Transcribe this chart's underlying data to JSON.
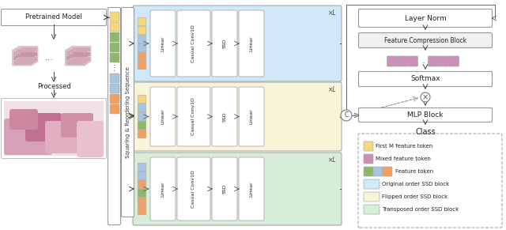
{
  "fig_width": 6.4,
  "fig_height": 2.91,
  "dpi": 100,
  "bg_color": "#ffffff",
  "colors": {
    "yellow": "#F5D87A",
    "green": "#8DB86A",
    "blue_sq": "#A8C4E0",
    "orange": "#F0A060",
    "pink": "#CC90B8",
    "block_blue": "#D0E8F8",
    "block_yellow": "#F8F4D8",
    "block_green": "#D8EDD8",
    "white": "#FFFFFF",
    "gray_box": "#F0F0F0",
    "border": "#999999",
    "text": "#222222",
    "arrow": "#555555"
  },
  "seq_label": "Squaring & Reordering Sequence",
  "ssd_labels": [
    "Linear",
    "Casual Conv1D",
    "SSD",
    "Linear"
  ],
  "right_labels": [
    "Layer Norm",
    "Feature Compression Block",
    "Softmax",
    "MLP Block",
    "Class"
  ],
  "legend": [
    {
      "label": "First M feature token",
      "type": "sq1",
      "colors": [
        "#F5D87A"
      ]
    },
    {
      "label": "Mixed feature token",
      "type": "sq1",
      "colors": [
        "#CC90B8"
      ]
    },
    {
      "label": "Feature token",
      "type": "sq3",
      "colors": [
        "#8DB86A",
        "#A8C4E0",
        "#F0A060"
      ]
    },
    {
      "label": "Original order SSD block",
      "type": "bar",
      "colors": [
        "#D0E8F8"
      ]
    },
    {
      "label": "Flipped order SSD block",
      "type": "bar",
      "colors": [
        "#F8F4D8"
      ]
    },
    {
      "label": "Transposed order SSD block",
      "type": "bar",
      "colors": [
        "#D8EDD8"
      ]
    }
  ]
}
